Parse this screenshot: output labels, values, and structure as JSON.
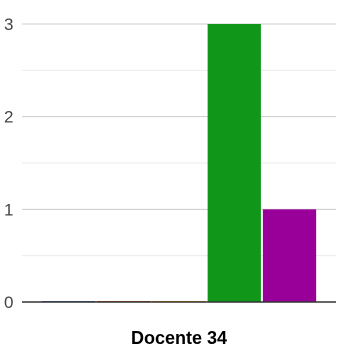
{
  "chart_data": {
    "type": "bar",
    "title": "",
    "xlabel": "",
    "ylabel": "",
    "categories": [
      "Docente 34"
    ],
    "series": [
      {
        "color": "#3366cc",
        "values": [
          0
        ]
      },
      {
        "color": "#dc3912",
        "values": [
          0
        ]
      },
      {
        "color": "#ff9900",
        "values": [
          0
        ]
      },
      {
        "color": "#109618",
        "values": [
          3
        ]
      },
      {
        "color": "#990099",
        "values": [
          1
        ]
      }
    ],
    "ylim": [
      0,
      3
    ],
    "yticks": [
      "0",
      "1",
      "2",
      "3"
    ],
    "grid": true,
    "legend": "none"
  }
}
